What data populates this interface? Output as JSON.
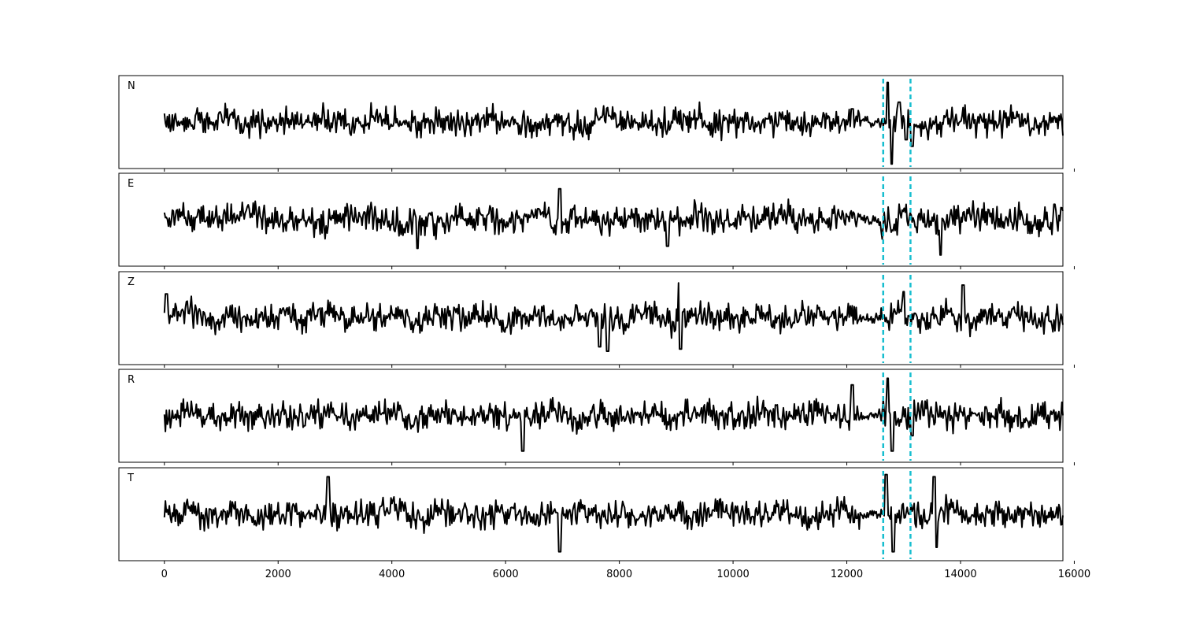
{
  "chart_data": {
    "type": "line",
    "title": "",
    "xlabel": "",
    "ylabel": "",
    "xlim": [
      -800,
      15800
    ],
    "x_ticks": [
      0,
      2000,
      4000,
      6000,
      8000,
      10000,
      12000,
      14000,
      16000
    ],
    "x_tick_labels": [
      "0",
      "2000",
      "4000",
      "6000",
      "8000",
      "10000",
      "12000",
      "14000",
      "16000"
    ],
    "x_start": 0,
    "x_end": 15800,
    "y_tick_labels_visible": false,
    "grid": false,
    "legend": "none",
    "line_color": "#000000",
    "marker_color": "#17becf",
    "markers": [
      12640,
      13120
    ],
    "series": [
      {
        "name": "N",
        "seed": 11,
        "values": [
          0.0,
          0.2,
          -0.1,
          0.5,
          -0.3,
          0.4,
          -0.4,
          0.8,
          -0.6,
          0.5,
          0.2,
          -0.3,
          0.6,
          -0.5,
          0.3,
          0.1,
          -0.2,
          0.4,
          -0.7,
          0.6,
          0.3,
          -0.5,
          0.2,
          0.8,
          -0.4,
          0.1,
          -0.3,
          0.5,
          -0.6,
          0.2,
          0.3,
          -0.2,
          0.7,
          -0.8,
          0.4,
          0.0,
          -0.3,
          0.6,
          -0.5,
          0.2
        ],
        "spikes": [
          [
            12100,
            0.6
          ],
          [
            12720,
            1.8
          ],
          [
            12790,
            -1.9
          ],
          [
            12920,
            0.9
          ],
          [
            13050,
            -0.8
          ],
          [
            13150,
            -1.1
          ]
        ]
      },
      {
        "name": "E",
        "seed": 23,
        "values": [
          0.0,
          0.4,
          -0.2,
          0.3,
          0.7,
          -0.5,
          0.2,
          -0.8,
          0.4,
          0.6,
          -0.3,
          0.1,
          -0.7,
          0.5,
          0.3,
          -0.4,
          0.8,
          -0.2,
          0.4,
          -0.6,
          0.3,
          0.1,
          -0.5,
          0.7,
          -0.3,
          0.4,
          -0.1,
          0.6,
          -0.4,
          0.2,
          0.5,
          -0.7,
          0.3,
          0.0,
          -0.4,
          0.6,
          -0.2,
          0.3,
          -0.5,
          0.4
        ],
        "spikes": [
          [
            4450,
            -1.3
          ],
          [
            6950,
            1.4
          ],
          [
            8850,
            -1.2
          ],
          [
            13650,
            -1.6
          ],
          [
            15650,
            0.7
          ]
        ]
      },
      {
        "name": "Z",
        "seed": 37,
        "values": [
          0.0,
          1.1,
          -0.4,
          0.3,
          -0.6,
          0.5,
          -0.2,
          0.7,
          -0.5,
          0.4,
          0.2,
          -0.7,
          0.6,
          -0.3,
          0.4,
          -0.5,
          0.8,
          -0.6,
          0.3,
          0.1,
          -0.4,
          0.7,
          -0.8,
          0.5,
          0.2,
          -0.6,
          0.4,
          -0.3,
          0.6,
          -0.5,
          0.3,
          -0.2,
          0.7,
          -0.4,
          0.5,
          -0.6,
          0.3,
          0.2,
          -0.4,
          0.1
        ],
        "spikes": [
          [
            30,
            1.1
          ],
          [
            7650,
            -1.3
          ],
          [
            7800,
            -1.5
          ],
          [
            9050,
            1.6
          ],
          [
            9080,
            -1.4
          ],
          [
            13000,
            1.2
          ],
          [
            14050,
            1.5
          ]
        ]
      },
      {
        "name": "R",
        "seed": 41,
        "values": [
          0.0,
          0.4,
          -0.5,
          0.6,
          -0.2,
          0.3,
          -0.4,
          0.5,
          -0.3,
          0.2,
          0.4,
          -0.6,
          0.3,
          -0.1,
          0.5,
          -0.4,
          0.2,
          0.6,
          -0.5,
          0.3,
          -0.2,
          0.4,
          -0.7,
          0.5,
          0.1,
          -0.3,
          0.6,
          -0.4,
          0.2,
          0.3,
          -0.5,
          0.4,
          -0.2,
          0.6,
          -0.3,
          0.1,
          0.5,
          -0.4,
          0.3,
          -0.1
        ],
        "spikes": [
          [
            6300,
            -1.6
          ],
          [
            12100,
            1.4
          ],
          [
            12720,
            1.7
          ],
          [
            12800,
            -1.6
          ],
          [
            13150,
            -0.9
          ]
        ]
      },
      {
        "name": "T",
        "seed": 53,
        "values": [
          0.0,
          0.3,
          -0.4,
          0.6,
          -0.5,
          0.2,
          0.4,
          -0.7,
          0.5,
          -0.3,
          0.8,
          -0.6,
          0.3,
          0.1,
          -0.5,
          0.6,
          -0.4,
          0.2,
          0.5,
          -0.6,
          0.3,
          -0.2,
          0.7,
          -0.5,
          0.4,
          0.1,
          -0.3,
          0.6,
          -0.7,
          0.4,
          0.2,
          -0.5,
          0.3,
          -0.2,
          0.6,
          -0.4,
          0.5,
          0.1,
          -0.3,
          -0.4
        ],
        "spikes": [
          [
            2880,
            1.7
          ],
          [
            6950,
            -1.7
          ],
          [
            12700,
            1.8
          ],
          [
            12820,
            -1.7
          ],
          [
            13530,
            1.7
          ],
          [
            13580,
            -1.5
          ]
        ]
      }
    ]
  }
}
